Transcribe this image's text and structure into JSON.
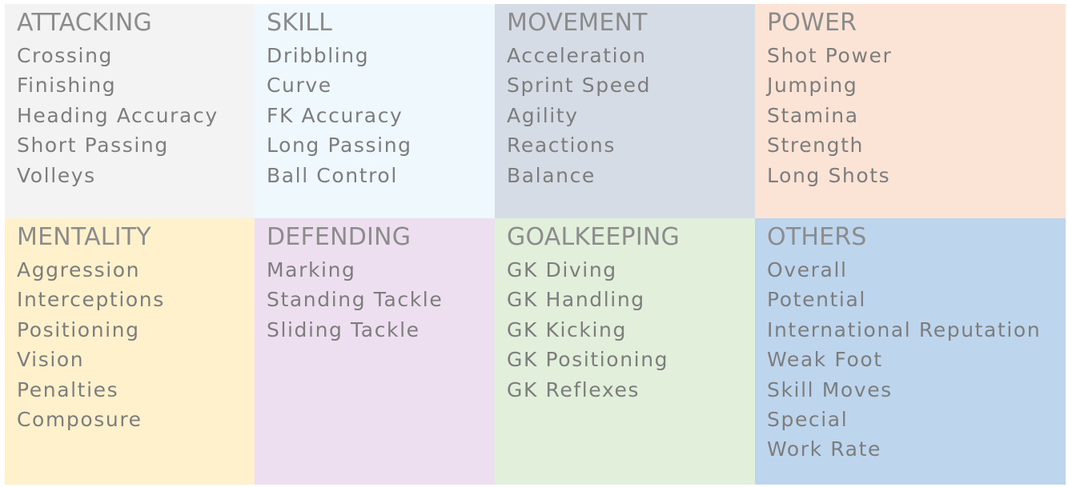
{
  "categories": [
    {
      "key": "attacking",
      "title": "ATTACKING",
      "color": "#f3f3f3",
      "attributes": [
        "Crossing",
        "Finishing",
        "Heading Accuracy",
        "Short Passing",
        "Volleys"
      ]
    },
    {
      "key": "skill",
      "title": "SKILL",
      "color": "#eff8fc",
      "attributes": [
        "Dribbling",
        "Curve",
        "FK Accuracy",
        "Long Passing",
        "Ball Control"
      ]
    },
    {
      "key": "movement",
      "title": "MOVEMENT",
      "color": "#d6dce5",
      "attributes": [
        "Acceleration",
        "Sprint Speed",
        "Agility",
        "Reactions",
        "Balance"
      ]
    },
    {
      "key": "power",
      "title": "POWER",
      "color": "#fbe4d6",
      "attributes": [
        "Shot Power",
        "Jumping",
        "Stamina",
        "Strength",
        "Long Shots"
      ]
    },
    {
      "key": "mentality",
      "title": "MENTALITY",
      "color": "#fff1cc",
      "attributes": [
        "Aggression",
        "Interceptions",
        "Positioning",
        "Vision",
        "Penalties",
        "Composure"
      ]
    },
    {
      "key": "defending",
      "title": "DEFENDING",
      "color": "#eedff0",
      "attributes": [
        "Marking",
        "Standing Tackle",
        "Sliding Tackle"
      ]
    },
    {
      "key": "goalkeeping",
      "title": "GOALKEEPING",
      "color": "#e2efda",
      "attributes": [
        "GK Diving",
        "GK Handling",
        "GK Kicking",
        "GK Positioning",
        "GK Reflexes"
      ]
    },
    {
      "key": "others",
      "title": "OTHERS",
      "color": "#bdd6ee",
      "attributes": [
        "Overall",
        "Potential",
        "International Reputation",
        "Weak Foot",
        "Skill Moves",
        "Special",
        "Work Rate"
      ]
    }
  ]
}
